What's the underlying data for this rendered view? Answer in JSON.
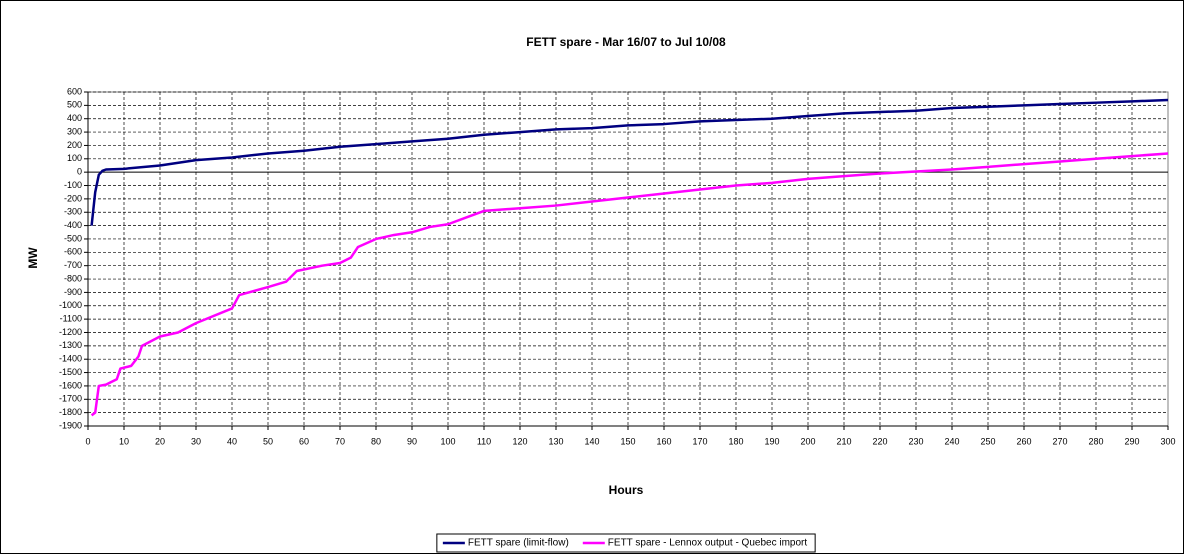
{
  "chart_data": {
    "type": "line",
    "title": "FETT spare - Mar 16/07 to Jul 10/08",
    "x_label": "Hours",
    "y_label": "MW",
    "xlim": [
      0,
      300
    ],
    "xticks": [
      0,
      10,
      20,
      30,
      40,
      50,
      60,
      70,
      80,
      90,
      100,
      110,
      120,
      130,
      140,
      150,
      160,
      170,
      180,
      190,
      200,
      210,
      220,
      230,
      240,
      250,
      260,
      270,
      280,
      290,
      300
    ],
    "ylim": [
      -1900,
      600
    ],
    "yticks": [
      -1900,
      -1800,
      -1700,
      -1600,
      -1500,
      -1400,
      -1300,
      -1200,
      -1100,
      -1000,
      -900,
      -800,
      -700,
      -600,
      -500,
      -400,
      -300,
      -200,
      -100,
      0,
      100,
      200,
      300,
      400,
      500,
      600
    ],
    "grid": true,
    "legend": "bottom",
    "series": [
      {
        "name": "FETT spare (limit-flow)",
        "color": "#000080",
        "x": [
          1,
          2,
          3,
          4,
          5,
          10,
          20,
          30,
          40,
          50,
          60,
          70,
          80,
          90,
          100,
          110,
          120,
          130,
          140,
          150,
          160,
          170,
          180,
          190,
          200,
          210,
          220,
          230,
          240,
          250,
          260,
          270,
          280,
          290,
          300
        ],
        "values": [
          -400,
          -150,
          -20,
          10,
          20,
          25,
          50,
          90,
          110,
          140,
          160,
          190,
          210,
          230,
          250,
          280,
          300,
          320,
          330,
          350,
          360,
          380,
          390,
          400,
          420,
          440,
          450,
          460,
          480,
          490,
          500,
          510,
          520,
          530,
          540
        ]
      },
      {
        "name": "FETT spare - Lennox output - Quebec import",
        "color": "#ff00ff",
        "x": [
          1,
          2,
          3,
          5,
          8,
          9,
          12,
          14,
          15,
          20,
          25,
          30,
          40,
          42,
          50,
          55,
          58,
          65,
          70,
          73,
          75,
          80,
          85,
          90,
          95,
          100,
          105,
          110,
          120,
          130,
          140,
          150,
          160,
          170,
          180,
          190,
          200,
          210,
          220,
          230,
          240,
          250,
          260,
          270,
          280,
          290,
          300
        ],
        "values": [
          -1820,
          -1800,
          -1600,
          -1590,
          -1550,
          -1470,
          -1450,
          -1380,
          -1300,
          -1230,
          -1200,
          -1130,
          -1020,
          -920,
          -860,
          -820,
          -740,
          -700,
          -680,
          -640,
          -560,
          -500,
          -470,
          -450,
          -410,
          -390,
          -340,
          -290,
          -270,
          -250,
          -220,
          -190,
          -160,
          -130,
          -100,
          -80,
          -50,
          -30,
          -10,
          5,
          20,
          40,
          60,
          80,
          100,
          120,
          140
        ]
      }
    ]
  }
}
